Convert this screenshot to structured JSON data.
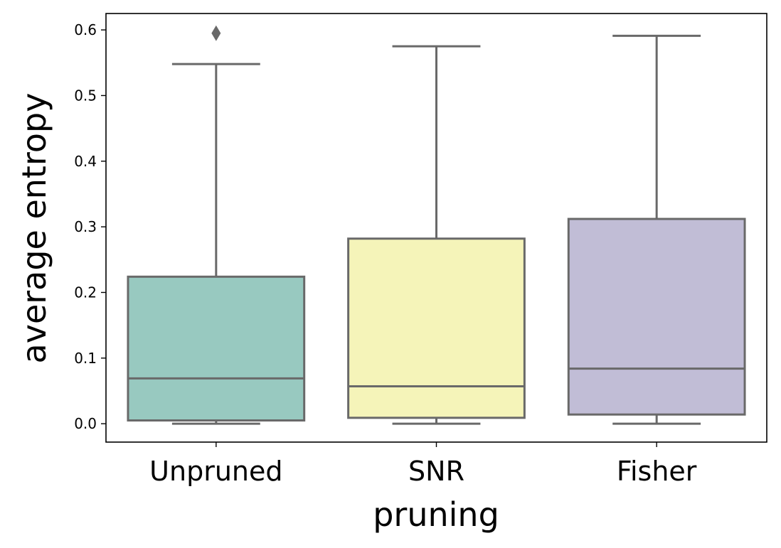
{
  "chart_data": {
    "type": "box",
    "title": "",
    "xlabel": "pruning",
    "ylabel": "average entropy",
    "ylim": [
      -0.028,
      0.625
    ],
    "yticks": [
      "0.0",
      "0.1",
      "0.2",
      "0.3",
      "0.4",
      "0.5",
      "0.6"
    ],
    "grid": false,
    "categories": [
      "Unpruned",
      "SNR",
      "Fisher"
    ],
    "boxes": [
      {
        "category": "Unpruned",
        "color": "#98c9c0",
        "whisker_low": 0.0,
        "q1": 0.005,
        "median": 0.069,
        "q3": 0.224,
        "whisker_high": 0.548,
        "outliers": [
          0.595
        ]
      },
      {
        "category": "SNR",
        "color": "#f5f4b9",
        "whisker_low": 0.0,
        "q1": 0.009,
        "median": 0.057,
        "q3": 0.282,
        "whisker_high": 0.575,
        "outliers": []
      },
      {
        "category": "Fisher",
        "color": "#c1bdd6",
        "whisker_low": 0.0,
        "q1": 0.014,
        "median": 0.084,
        "q3": 0.312,
        "whisker_high": 0.591,
        "outliers": []
      }
    ],
    "line_color": "#696969"
  }
}
